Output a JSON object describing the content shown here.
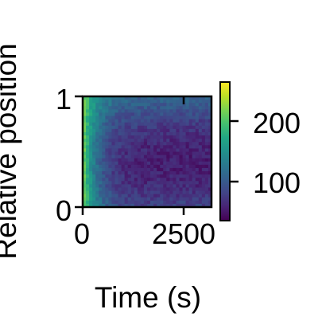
{
  "chart_data": {
    "type": "heatmap",
    "xlabel": "Time (s)",
    "ylabel": "Relative position",
    "xlim": [
      0,
      3000
    ],
    "ylim": [
      0,
      1
    ],
    "xticks": [
      0,
      2500
    ],
    "xtick_labels": [
      "0",
      "2500"
    ],
    "yticks": [
      0,
      1
    ],
    "ytick_labels": [
      "0",
      "1"
    ],
    "colormap": "viridis",
    "colorbar": {
      "range": [
        40,
        270
      ],
      "ticks": [
        100,
        200
      ],
      "tick_labels": [
        "100",
        "200"
      ]
    },
    "grid": false,
    "description_values": {
      "early_time_values": 230,
      "late_time_center_values": 60,
      "late_time_edge_values": 110
    }
  }
}
